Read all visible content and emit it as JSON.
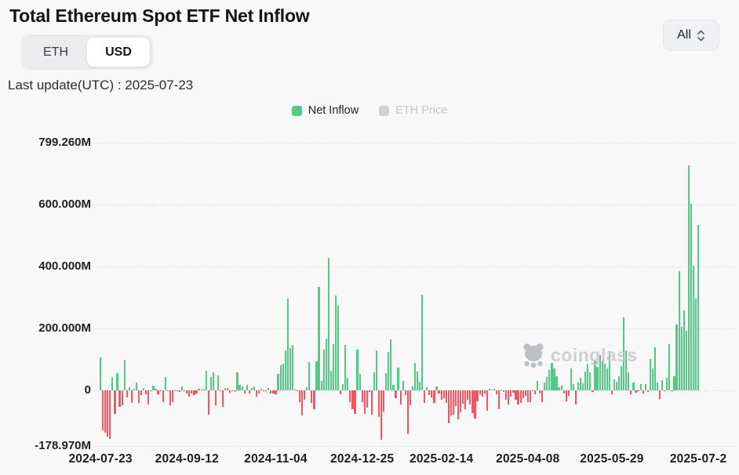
{
  "page": {
    "title": "Total Ethereum Spot ETF Net Inflow",
    "last_update": "Last update(UTC) : 2025-07-23"
  },
  "controls": {
    "unit_toggle": {
      "options": [
        {
          "label": "ETH",
          "active": false
        },
        {
          "label": "USD",
          "active": true
        }
      ]
    },
    "range_select": {
      "value": "All",
      "icon": "up-down-chevrons"
    }
  },
  "legend": {
    "items": [
      {
        "label": "Net Inflow",
        "color": "#52c985",
        "text_color": "#202226",
        "enabled": true
      },
      {
        "label": "ETH Price",
        "color": "#d0d2d6",
        "text_color": "#c5c8cd",
        "enabled": false
      }
    ]
  },
  "watermark": {
    "text": "coinglass",
    "icon": "bear-logo"
  },
  "colors": {
    "positive": "#52c985",
    "negative": "#f4555e",
    "background": "#f8f8f9",
    "grid": "#e4e5e8"
  },
  "chart_data": {
    "type": "bar",
    "title": "Total Ethereum Spot ETF Net Inflow",
    "series_name": "Net Inflow",
    "unit": "USD (millions)",
    "ylim": [
      -178.97,
      799.26
    ],
    "grid": "horizontal-dashed",
    "legend_position": "top-center",
    "hidden_series": "ETH Price",
    "y_ticks": [
      {
        "label": "799.260M",
        "value": 799.26
      },
      {
        "label": "600.000M",
        "value": 600
      },
      {
        "label": "400.000M",
        "value": 400
      },
      {
        "label": "200.000M",
        "value": 200
      },
      {
        "label": "0",
        "value": 0
      },
      {
        "label": "-178.970M",
        "value": -178.97
      }
    ],
    "x_ticks": [
      {
        "label": "2024-07-23",
        "date": "2024-07-23"
      },
      {
        "label": "2024-09-12",
        "date": "2024-09-12"
      },
      {
        "label": "2024-11-04",
        "date": "2024-11-04"
      },
      {
        "label": "2024-12-25",
        "date": "2024-12-25"
      },
      {
        "label": "2025-02-14",
        "date": "2025-02-14"
      },
      {
        "label": "2025-04-08",
        "date": "2025-04-08"
      },
      {
        "label": "2025-05-29",
        "date": "2025-05-29"
      },
      {
        "label": "2025-07-2",
        "date": "2025-07-23"
      }
    ],
    "points": [
      [
        "2024-07-23",
        106.6
      ],
      [
        "2024-07-24",
        -128.8
      ],
      [
        "2024-07-25",
        -136.9
      ],
      [
        "2024-07-26",
        -149.1
      ],
      [
        "2024-07-29",
        -157.1
      ],
      [
        "2024-07-30",
        42.0
      ],
      [
        "2024-07-31",
        -75.3
      ],
      [
        "2024-08-01",
        54.8
      ],
      [
        "2024-08-02",
        -54.3
      ],
      [
        "2024-08-05",
        -47.7
      ],
      [
        "2024-08-06",
        98.4
      ],
      [
        "2024-08-07",
        -23.7
      ],
      [
        "2024-08-08",
        10.8
      ],
      [
        "2024-08-09",
        -41.0
      ],
      [
        "2024-08-12",
        4.9
      ],
      [
        "2024-08-13",
        24.3
      ],
      [
        "2024-08-14",
        -39.2
      ],
      [
        "2024-08-15",
        -14.0
      ],
      [
        "2024-08-16",
        6.8
      ],
      [
        "2024-08-19",
        -13.5
      ],
      [
        "2024-08-20",
        -44.7
      ],
      [
        "2024-08-21",
        -0.8
      ],
      [
        "2024-08-22",
        14.3
      ],
      [
        "2024-08-23",
        4.9
      ],
      [
        "2024-08-26",
        -13.4
      ],
      [
        "2024-08-27",
        -3.4
      ],
      [
        "2024-08-28",
        -37.5
      ],
      [
        "2024-08-29",
        43.2
      ],
      [
        "2024-08-30",
        -1.5
      ],
      [
        "2024-09-03",
        -47.4
      ],
      [
        "2024-09-04",
        -37.5
      ],
      [
        "2024-09-05",
        -0.2
      ],
      [
        "2024-09-06",
        -2.8
      ],
      [
        "2024-09-09",
        -5.2
      ],
      [
        "2024-09-10",
        11.4
      ],
      [
        "2024-09-11",
        -0.5
      ],
      [
        "2024-09-12",
        -9.4
      ],
      [
        "2024-09-13",
        -20.1
      ],
      [
        "2024-09-16",
        -9.4
      ],
      [
        "2024-09-17",
        -15.1
      ],
      [
        "2024-09-18",
        -9.8
      ],
      [
        "2024-09-19",
        5.2
      ],
      [
        "2024-09-20",
        2.9
      ],
      [
        "2024-09-23",
        4.9
      ],
      [
        "2024-09-24",
        62.5
      ],
      [
        "2024-09-25",
        -79.3
      ],
      [
        "2024-09-26",
        43.3
      ],
      [
        "2024-09-27",
        58.7
      ],
      [
        "2024-09-30",
        -48.6
      ],
      [
        "2024-10-01",
        48.8
      ],
      [
        "2024-10-02",
        -3.2
      ],
      [
        "2024-10-03",
        -54.0
      ],
      [
        "2024-10-04",
        7.4
      ],
      [
        "2024-10-07",
        7.0
      ],
      [
        "2024-10-08",
        -8.1
      ],
      [
        "2024-10-09",
        -3.0
      ],
      [
        "2024-10-10",
        -0.1
      ],
      [
        "2024-10-11",
        58.7
      ],
      [
        "2024-10-14",
        17.1
      ],
      [
        "2024-10-15",
        11.7
      ],
      [
        "2024-10-16",
        -10.0
      ],
      [
        "2024-10-17",
        18.0
      ],
      [
        "2024-10-18",
        -10.9
      ],
      [
        "2024-10-21",
        6.4
      ],
      [
        "2024-10-22",
        11.9
      ],
      [
        "2024-10-23",
        -19.4
      ],
      [
        "2024-10-24",
        -11.1
      ],
      [
        "2024-10-25",
        4.1
      ],
      [
        "2024-10-28",
        -1.1
      ],
      [
        "2024-10-29",
        -2.1
      ],
      [
        "2024-10-30",
        6.6
      ],
      [
        "2024-10-31",
        -11.2
      ],
      [
        "2024-11-01",
        -10.9
      ],
      [
        "2024-11-04",
        -12.0
      ],
      [
        "2024-11-05",
        52.3
      ],
      [
        "2024-11-06",
        79.7
      ],
      [
        "2024-11-07",
        85.9
      ],
      [
        "2024-11-08",
        130.0
      ],
      [
        "2024-11-11",
        295.5
      ],
      [
        "2024-11-12",
        135.9
      ],
      [
        "2024-11-13",
        146.9
      ],
      [
        "2024-11-14",
        2.5
      ],
      [
        "2024-11-15",
        -2.1
      ],
      [
        "2024-11-18",
        -39.1
      ],
      [
        "2024-11-19",
        -81.3
      ],
      [
        "2024-11-20",
        -30.3
      ],
      [
        "2024-11-21",
        9.2
      ],
      [
        "2024-11-22",
        91.2
      ],
      [
        "2024-11-25",
        -39.7
      ],
      [
        "2024-11-26",
        -60.4
      ],
      [
        "2024-11-27",
        92.7
      ],
      [
        "2024-11-29",
        332.9
      ],
      [
        "2024-12-02",
        30.7
      ],
      [
        "2024-12-03",
        132.7
      ],
      [
        "2024-12-04",
        167.7
      ],
      [
        "2024-12-05",
        428.5
      ],
      [
        "2024-12-06",
        62.7
      ],
      [
        "2024-12-09",
        149.8
      ],
      [
        "2024-12-10",
        305.7
      ],
      [
        "2024-12-11",
        274.0
      ],
      [
        "2024-12-12",
        -12.1
      ],
      [
        "2024-12-13",
        20.9
      ],
      [
        "2024-12-16",
        145.8
      ],
      [
        "2024-12-17",
        40.1
      ],
      [
        "2024-12-18",
        -38.4
      ],
      [
        "2024-12-19",
        -60.5
      ],
      [
        "2024-12-20",
        -75.1
      ],
      [
        "2024-12-23",
        130.8
      ],
      [
        "2024-12-24",
        53.6
      ],
      [
        "2024-12-26",
        -38.4
      ],
      [
        "2024-12-27",
        -75.9
      ],
      [
        "2024-12-30",
        -56.1
      ],
      [
        "2024-12-31",
        -5.8
      ],
      [
        "2025-01-02",
        -77.5
      ],
      [
        "2025-01-03",
        58.9
      ],
      [
        "2025-01-06",
        128.7
      ],
      [
        "2025-01-07",
        -86.8
      ],
      [
        "2025-01-08",
        -159.3
      ],
      [
        "2025-01-10",
        -68.5
      ],
      [
        "2025-01-13",
        55.0
      ],
      [
        "2025-01-14",
        125.0
      ],
      [
        "2025-01-15",
        165.0
      ],
      [
        "2025-01-16",
        18.9
      ],
      [
        "2025-01-17",
        -25.0
      ],
      [
        "2025-01-21",
        74.0
      ],
      [
        "2025-01-22",
        -45.0
      ],
      [
        "2025-01-23",
        30.2
      ],
      [
        "2025-01-24",
        -15.0
      ],
      [
        "2025-01-27",
        -142.0
      ],
      [
        "2025-01-28",
        -48.0
      ],
      [
        "2025-01-29",
        12.0
      ],
      [
        "2025-01-30",
        88.0
      ],
      [
        "2025-01-31",
        60.0
      ],
      [
        "2025-02-03",
        28.7
      ],
      [
        "2025-02-04",
        307.8
      ],
      [
        "2025-02-05",
        -40.7
      ],
      [
        "2025-02-06",
        10.7
      ],
      [
        "2025-02-07",
        -15.2
      ],
      [
        "2025-02-10",
        -22.4
      ],
      [
        "2025-02-11",
        -40.9
      ],
      [
        "2025-02-12",
        12.5
      ],
      [
        "2025-02-13",
        -8.9
      ],
      [
        "2025-02-14",
        -30.2
      ],
      [
        "2025-02-18",
        -25.0
      ],
      [
        "2025-02-19",
        -40.0
      ],
      [
        "2025-02-20",
        -105.0
      ],
      [
        "2025-02-21",
        -80.0
      ],
      [
        "2025-02-24",
        -78.0
      ],
      [
        "2025-02-25",
        -50.0
      ],
      [
        "2025-02-26",
        -94.3
      ],
      [
        "2025-02-27",
        -71.2
      ],
      [
        "2025-02-28",
        -41.9
      ],
      [
        "2025-03-03",
        -60.0
      ],
      [
        "2025-03-04",
        -30.0
      ],
      [
        "2025-03-05",
        -45.0
      ],
      [
        "2025-03-06",
        -73.6
      ],
      [
        "2025-03-07",
        -90.0
      ],
      [
        "2025-03-10",
        -35.0
      ],
      [
        "2025-03-11",
        -12.0
      ],
      [
        "2025-03-12",
        -20.0
      ],
      [
        "2025-03-13",
        -10.0
      ],
      [
        "2025-03-14",
        -65.0
      ],
      [
        "2025-03-17",
        5.0
      ],
      [
        "2025-03-18",
        3.0
      ],
      [
        "2025-03-19",
        6.0
      ],
      [
        "2025-03-20",
        -12.0
      ],
      [
        "2025-03-21",
        -60.0
      ],
      [
        "2025-03-24",
        2.0
      ],
      [
        "2025-03-25",
        -6.0
      ],
      [
        "2025-03-26",
        -30.0
      ],
      [
        "2025-03-27",
        -45.0
      ],
      [
        "2025-03-28",
        -20.0
      ],
      [
        "2025-03-31",
        -8.0
      ],
      [
        "2025-04-01",
        -30.0
      ],
      [
        "2025-04-02",
        -45.0
      ],
      [
        "2025-04-03",
        -40.0
      ],
      [
        "2025-04-04",
        -25.0
      ],
      [
        "2025-04-07",
        -18.0
      ],
      [
        "2025-04-08",
        -38.0
      ],
      [
        "2025-04-09",
        -37.0
      ],
      [
        "2025-04-10",
        2.0
      ],
      [
        "2025-04-11",
        -12.0
      ],
      [
        "2025-04-14",
        30.0
      ],
      [
        "2025-04-15",
        -10.0
      ],
      [
        "2025-04-16",
        -37.0
      ],
      [
        "2025-04-17",
        25.0
      ],
      [
        "2025-04-21",
        42.0
      ],
      [
        "2025-04-22",
        65.0
      ],
      [
        "2025-04-23",
        88.0
      ],
      [
        "2025-04-24",
        72.0
      ],
      [
        "2025-04-25",
        45.0
      ],
      [
        "2025-04-28",
        10.0
      ],
      [
        "2025-04-29",
        15.0
      ],
      [
        "2025-04-30",
        -10.0
      ],
      [
        "2025-05-01",
        -35.0
      ],
      [
        "2025-05-02",
        -18.0
      ],
      [
        "2025-05-05",
        70.0
      ],
      [
        "2025-05-06",
        20.0
      ],
      [
        "2025-05-07",
        -45.0
      ],
      [
        "2025-05-08",
        25.0
      ],
      [
        "2025-05-09",
        40.0
      ],
      [
        "2025-05-12",
        22.0
      ],
      [
        "2025-05-13",
        60.0
      ],
      [
        "2025-05-14",
        87.0
      ],
      [
        "2025-05-15",
        58.0
      ],
      [
        "2025-05-16",
        -5.0
      ],
      [
        "2025-05-19",
        95.0
      ],
      [
        "2025-05-20",
        75.0
      ],
      [
        "2025-05-21",
        115.0
      ],
      [
        "2025-05-22",
        95.0
      ],
      [
        "2025-05-23",
        85.0
      ],
      [
        "2025-05-27",
        70.0
      ],
      [
        "2025-05-28",
        127.0
      ],
      [
        "2025-05-29",
        -12.0
      ],
      [
        "2025-05-30",
        35.0
      ],
      [
        "2025-06-02",
        28.0
      ],
      [
        "2025-06-03",
        45.0
      ],
      [
        "2025-06-04",
        78.0
      ],
      [
        "2025-06-05",
        236.0
      ],
      [
        "2025-06-06",
        128.0
      ],
      [
        "2025-06-09",
        58.0
      ],
      [
        "2025-06-10",
        -12.0
      ],
      [
        "2025-06-11",
        25.0
      ],
      [
        "2025-06-12",
        -8.0
      ],
      [
        "2025-06-13",
        -2.0
      ],
      [
        "2025-06-16",
        21.0
      ],
      [
        "2025-06-17",
        -11.0
      ],
      [
        "2025-06-18",
        19.0
      ],
      [
        "2025-06-20",
        -5.0
      ],
      [
        "2025-06-23",
        100.7
      ],
      [
        "2025-06-24",
        71.3
      ],
      [
        "2025-06-25",
        140.0
      ],
      [
        "2025-06-26",
        26.4
      ],
      [
        "2025-06-27",
        -27.0
      ],
      [
        "2025-06-30",
        32.0
      ],
      [
        "2025-07-01",
        -1.8
      ],
      [
        "2025-07-02",
        40.7
      ],
      [
        "2025-07-03",
        148.5
      ],
      [
        "2025-07-07",
        -2.0
      ],
      [
        "2025-07-08",
        46.6
      ],
      [
        "2025-07-09",
        211.3
      ],
      [
        "2025-07-10",
        383.1
      ],
      [
        "2025-07-11",
        204.8
      ],
      [
        "2025-07-14",
        259.0
      ],
      [
        "2025-07-15",
        192.3
      ],
      [
        "2025-07-16",
        726.7
      ],
      [
        "2025-07-17",
        602.1
      ],
      [
        "2025-07-18",
        402.5
      ],
      [
        "2025-07-21",
        296.6
      ],
      [
        "2025-07-22",
        533.8
      ]
    ]
  }
}
